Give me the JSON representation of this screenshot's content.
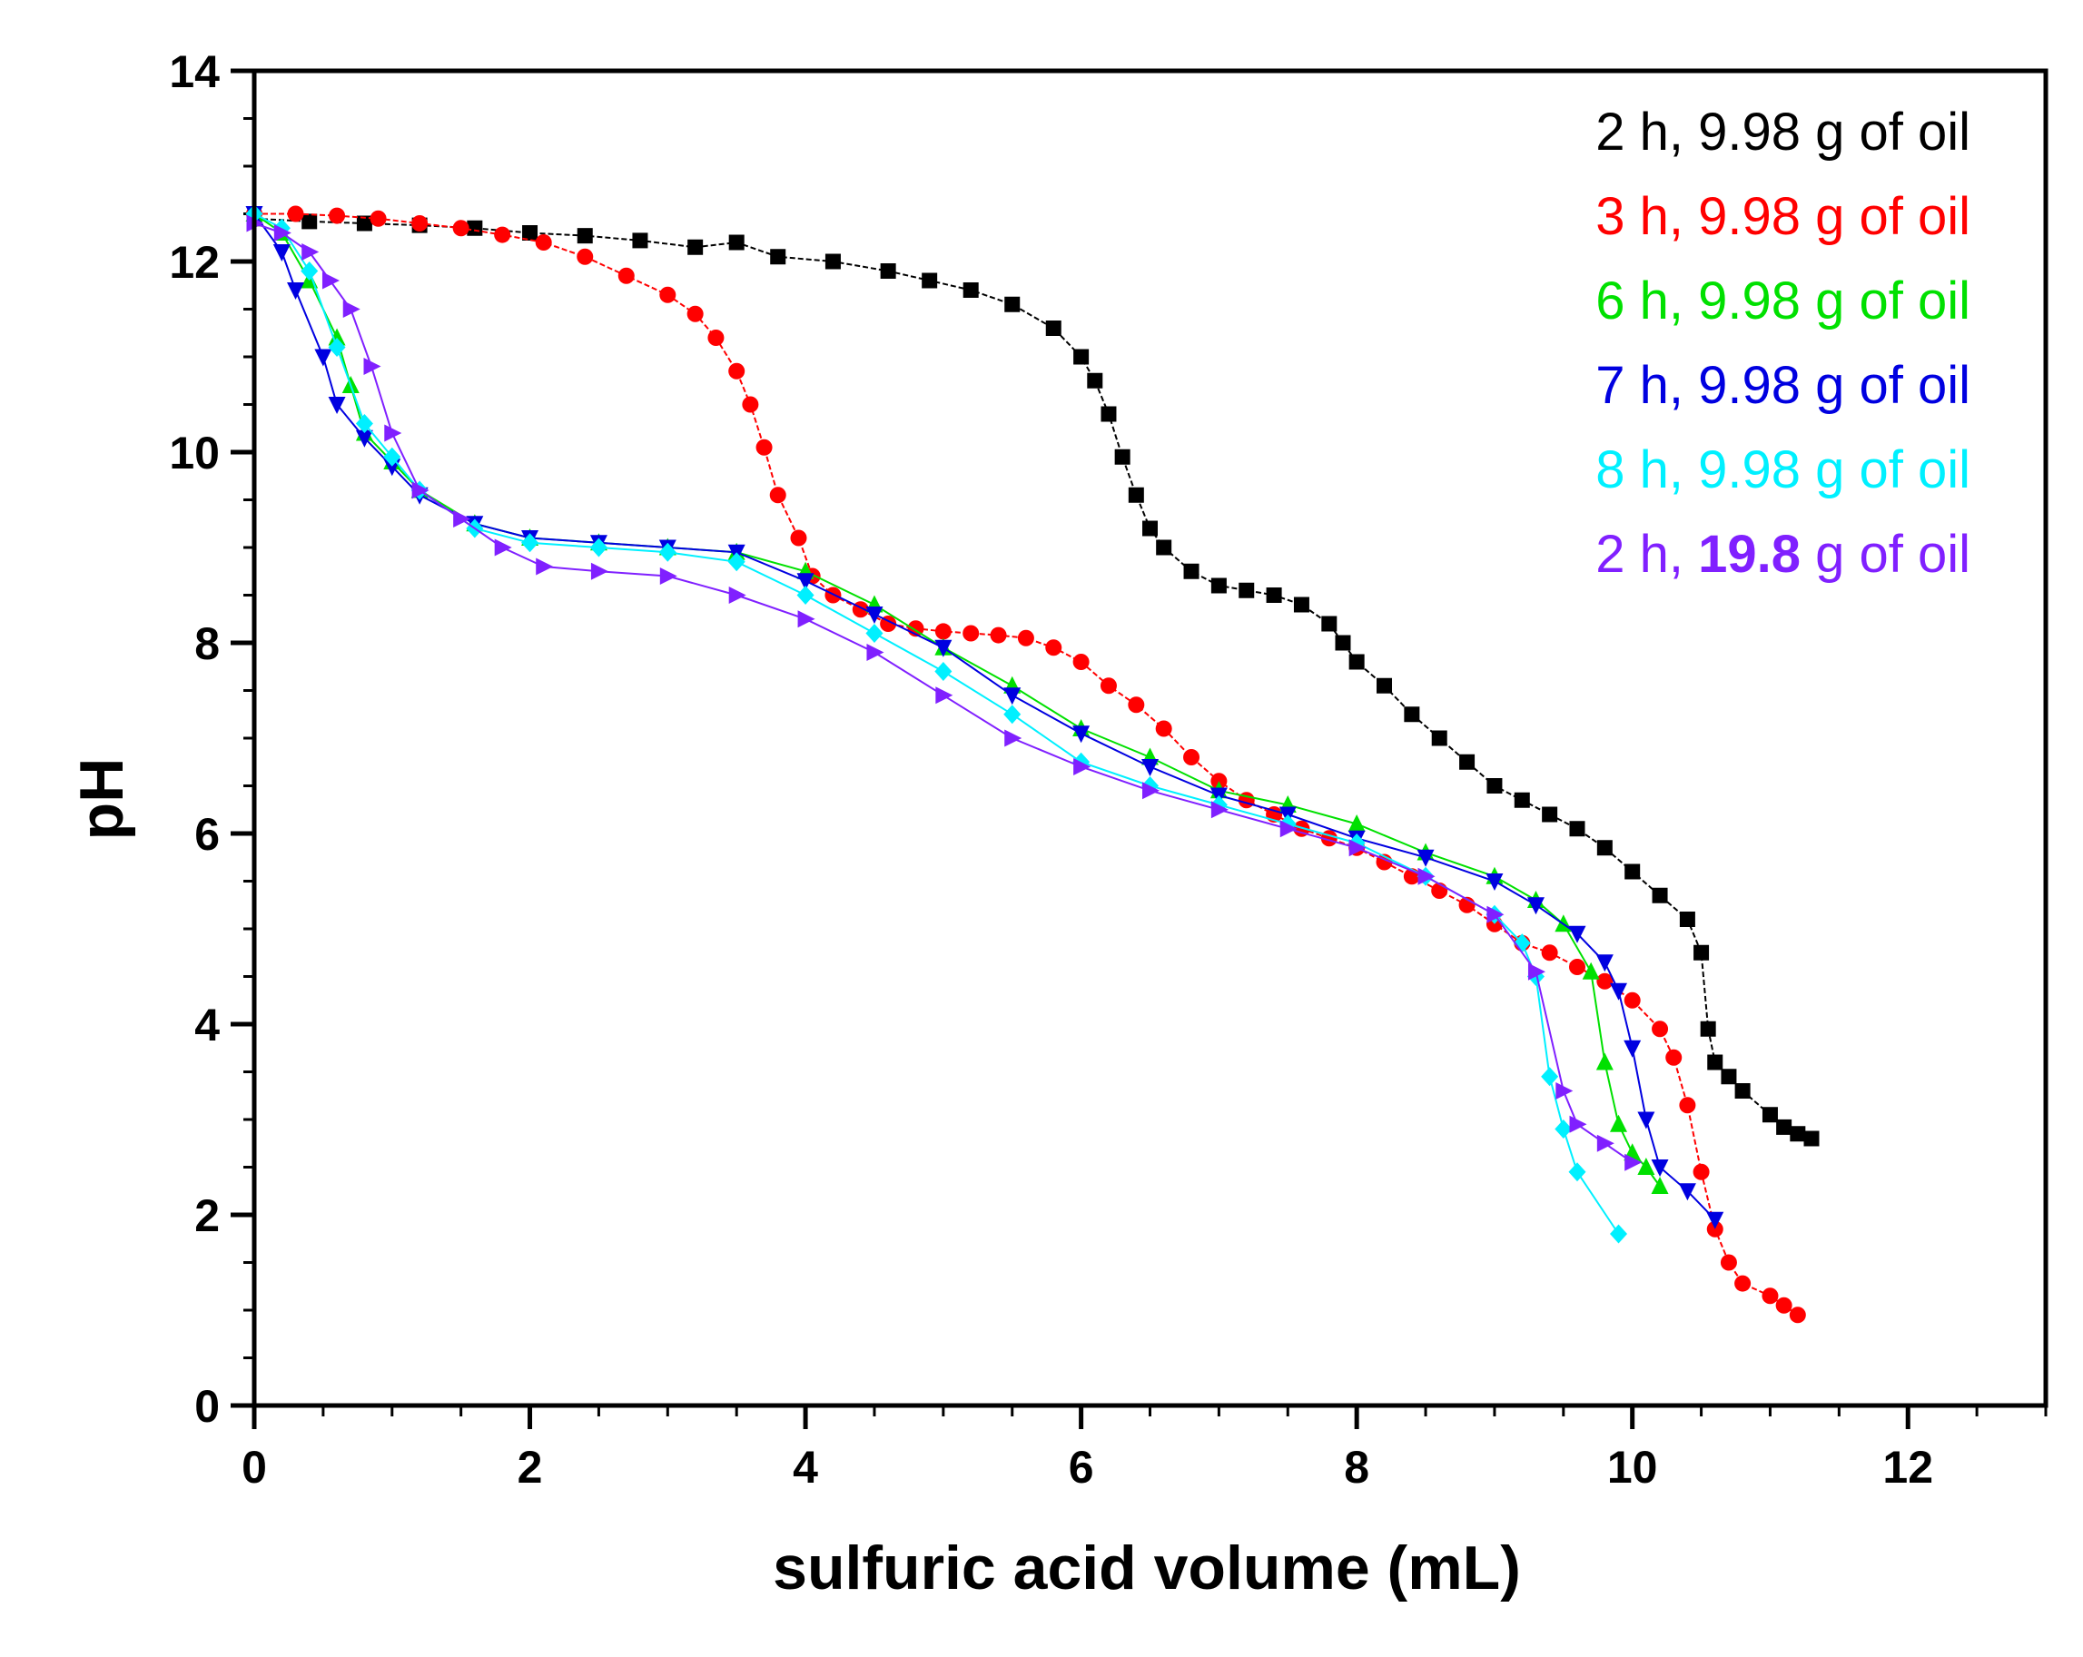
{
  "chart_data": {
    "type": "line",
    "title": "",
    "xlabel": "sulfuric acid volume (mL)",
    "ylabel": "pH",
    "xlim": [
      0,
      13
    ],
    "ylim": [
      0,
      14
    ],
    "xticks": [
      "0",
      "2",
      "4",
      "6",
      "8",
      "10",
      "12"
    ],
    "yticks": [
      "0",
      "2",
      "4",
      "6",
      "8",
      "10",
      "12",
      "14"
    ],
    "grid": false,
    "legend_position": "top-right",
    "series": [
      {
        "name": "2 h, 9.98 g of oil",
        "legend_prefix": "2 h, 9.98 g of oil",
        "legend_bold": "",
        "legend_suffix": "",
        "color": "#000000",
        "marker": "square",
        "x": [
          0,
          0.4,
          0.8,
          1.2,
          1.6,
          2.0,
          2.4,
          2.8,
          3.2,
          3.5,
          3.8,
          4.2,
          4.6,
          4.9,
          5.2,
          5.5,
          5.8,
          6.0,
          6.1,
          6.2,
          6.3,
          6.4,
          6.5,
          6.6,
          6.8,
          7.0,
          7.2,
          7.4,
          7.6,
          7.8,
          7.9,
          8.0,
          8.2,
          8.4,
          8.6,
          8.8,
          9.0,
          9.2,
          9.4,
          9.6,
          9.8,
          10.0,
          10.2,
          10.4,
          10.5,
          10.55,
          10.6,
          10.7,
          10.8,
          11.0,
          11.1,
          11.2,
          11.3
        ],
        "y": [
          12.45,
          12.42,
          12.4,
          12.38,
          12.35,
          12.3,
          12.27,
          12.22,
          12.15,
          12.2,
          12.05,
          12.0,
          11.9,
          11.8,
          11.7,
          11.55,
          11.3,
          11.0,
          10.75,
          10.4,
          9.95,
          9.55,
          9.2,
          9.0,
          8.75,
          8.6,
          8.55,
          8.5,
          8.4,
          8.2,
          8.0,
          7.8,
          7.55,
          7.25,
          7.0,
          6.75,
          6.5,
          6.35,
          6.2,
          6.05,
          5.85,
          5.6,
          5.35,
          5.1,
          4.75,
          3.95,
          3.6,
          3.45,
          3.3,
          3.05,
          2.92,
          2.85,
          2.8
        ]
      },
      {
        "name": "3 h, 9.98 g of oil",
        "legend_prefix": "3 h, 9.98 g of oil",
        "legend_bold": "",
        "legend_suffix": "",
        "color": "#ff0000",
        "marker": "circle",
        "x": [
          0,
          0.3,
          0.6,
          0.9,
          1.2,
          1.5,
          1.8,
          2.1,
          2.4,
          2.7,
          3.0,
          3.2,
          3.35,
          3.5,
          3.6,
          3.7,
          3.8,
          3.95,
          4.05,
          4.2,
          4.4,
          4.6,
          4.8,
          5.0,
          5.2,
          5.4,
          5.6,
          5.8,
          6.0,
          6.2,
          6.4,
          6.6,
          6.8,
          7.0,
          7.2,
          7.4,
          7.6,
          7.8,
          8.0,
          8.2,
          8.4,
          8.6,
          8.8,
          9.0,
          9.2,
          9.4,
          9.6,
          9.8,
          10.0,
          10.2,
          10.3,
          10.4,
          10.5,
          10.6,
          10.7,
          10.8,
          11.0,
          11.1,
          11.2
        ],
        "y": [
          12.5,
          12.5,
          12.48,
          12.45,
          12.4,
          12.35,
          12.28,
          12.2,
          12.05,
          11.85,
          11.65,
          11.45,
          11.2,
          10.85,
          10.5,
          10.05,
          9.55,
          9.1,
          8.7,
          8.5,
          8.35,
          8.2,
          8.15,
          8.12,
          8.1,
          8.08,
          8.05,
          7.95,
          7.8,
          7.55,
          7.35,
          7.1,
          6.8,
          6.55,
          6.35,
          6.2,
          6.05,
          5.95,
          5.85,
          5.7,
          5.55,
          5.4,
          5.25,
          5.05,
          4.85,
          4.75,
          4.6,
          4.45,
          4.25,
          3.95,
          3.65,
          3.15,
          2.45,
          1.85,
          1.5,
          1.28,
          1.15,
          1.05,
          0.95
        ]
      },
      {
        "name": "6 h, 9.98 g of oil",
        "legend_prefix": "6 h, 9.98 g of oil",
        "legend_bold": "",
        "legend_suffix": "",
        "color": "#00e000",
        "marker": "triangle-up",
        "x": [
          0,
          0.2,
          0.4,
          0.6,
          0.7,
          0.8,
          1.0,
          1.2,
          1.6,
          2.0,
          2.5,
          3.0,
          3.5,
          4.0,
          4.5,
          5.0,
          5.5,
          6.0,
          6.5,
          7.0,
          7.5,
          8.0,
          8.5,
          9.0,
          9.3,
          9.5,
          9.7,
          9.8,
          9.9,
          10.0,
          10.1,
          10.2
        ],
        "y": [
          12.5,
          12.3,
          11.8,
          11.2,
          10.7,
          10.2,
          9.9,
          9.6,
          9.25,
          9.1,
          9.05,
          9.0,
          8.95,
          8.75,
          8.4,
          7.95,
          7.55,
          7.1,
          6.8,
          6.45,
          6.3,
          6.1,
          5.8,
          5.55,
          5.3,
          5.05,
          4.55,
          3.6,
          2.95,
          2.65,
          2.5,
          2.3
        ]
      },
      {
        "name": "7 h, 9.98 g of oil",
        "legend_prefix": "7 h, 9.98 g of oil",
        "legend_bold": "",
        "legend_suffix": "",
        "color": "#0000e0",
        "marker": "triangle-down",
        "x": [
          0,
          0.2,
          0.3,
          0.5,
          0.6,
          0.8,
          1.0,
          1.2,
          1.6,
          2.0,
          2.5,
          3.0,
          3.5,
          4.0,
          4.5,
          5.0,
          5.5,
          6.0,
          6.5,
          7.0,
          7.5,
          8.0,
          8.5,
          9.0,
          9.3,
          9.6,
          9.8,
          9.9,
          10.0,
          10.1,
          10.2,
          10.4,
          10.6
        ],
        "y": [
          12.5,
          12.1,
          11.7,
          11.0,
          10.5,
          10.15,
          9.85,
          9.55,
          9.25,
          9.1,
          9.05,
          9.0,
          8.95,
          8.65,
          8.3,
          7.95,
          7.45,
          7.05,
          6.7,
          6.4,
          6.2,
          5.95,
          5.75,
          5.5,
          5.25,
          4.95,
          4.65,
          4.35,
          3.75,
          3.0,
          2.5,
          2.25,
          1.95
        ]
      },
      {
        "name": "8 h, 9.98 g of oil",
        "legend_prefix": "8 h, 9.98 g of oil",
        "legend_bold": "",
        "legend_suffix": "",
        "color": "#00f0ff",
        "marker": "diamond",
        "x": [
          0,
          0.2,
          0.4,
          0.6,
          0.8,
          1.0,
          1.2,
          1.6,
          2.0,
          2.5,
          3.0,
          3.5,
          4.0,
          4.5,
          5.0,
          5.5,
          6.0,
          6.5,
          7.0,
          7.5,
          8.0,
          8.5,
          9.0,
          9.2,
          9.3,
          9.4,
          9.5,
          9.6,
          9.9
        ],
        "y": [
          12.5,
          12.35,
          11.9,
          11.1,
          10.3,
          9.95,
          9.6,
          9.2,
          9.05,
          9.0,
          8.95,
          8.85,
          8.5,
          8.1,
          7.7,
          7.25,
          6.75,
          6.5,
          6.3,
          6.1,
          5.9,
          5.55,
          5.15,
          4.85,
          4.5,
          3.45,
          2.9,
          2.45,
          1.8
        ]
      },
      {
        "name": "2 h, 19.8 g of oil",
        "legend_prefix": "2 h, ",
        "legend_bold": "19.8",
        "legend_suffix": " g of oil",
        "color": "#8020ff",
        "marker": "triangle-right",
        "x": [
          0,
          0.2,
          0.4,
          0.55,
          0.7,
          0.85,
          1.0,
          1.2,
          1.5,
          1.8,
          2.1,
          2.5,
          3.0,
          3.5,
          4.0,
          4.5,
          5.0,
          5.5,
          6.0,
          6.5,
          7.0,
          7.5,
          8.0,
          8.5,
          9.0,
          9.3,
          9.5,
          9.6,
          9.8,
          10.0
        ],
        "y": [
          12.4,
          12.3,
          12.1,
          11.8,
          11.5,
          10.9,
          10.2,
          9.6,
          9.3,
          9.0,
          8.8,
          8.75,
          8.7,
          8.5,
          8.25,
          7.9,
          7.45,
          7.0,
          6.7,
          6.45,
          6.25,
          6.05,
          5.85,
          5.55,
          5.15,
          4.55,
          3.3,
          2.95,
          2.75,
          2.55
        ]
      }
    ]
  }
}
